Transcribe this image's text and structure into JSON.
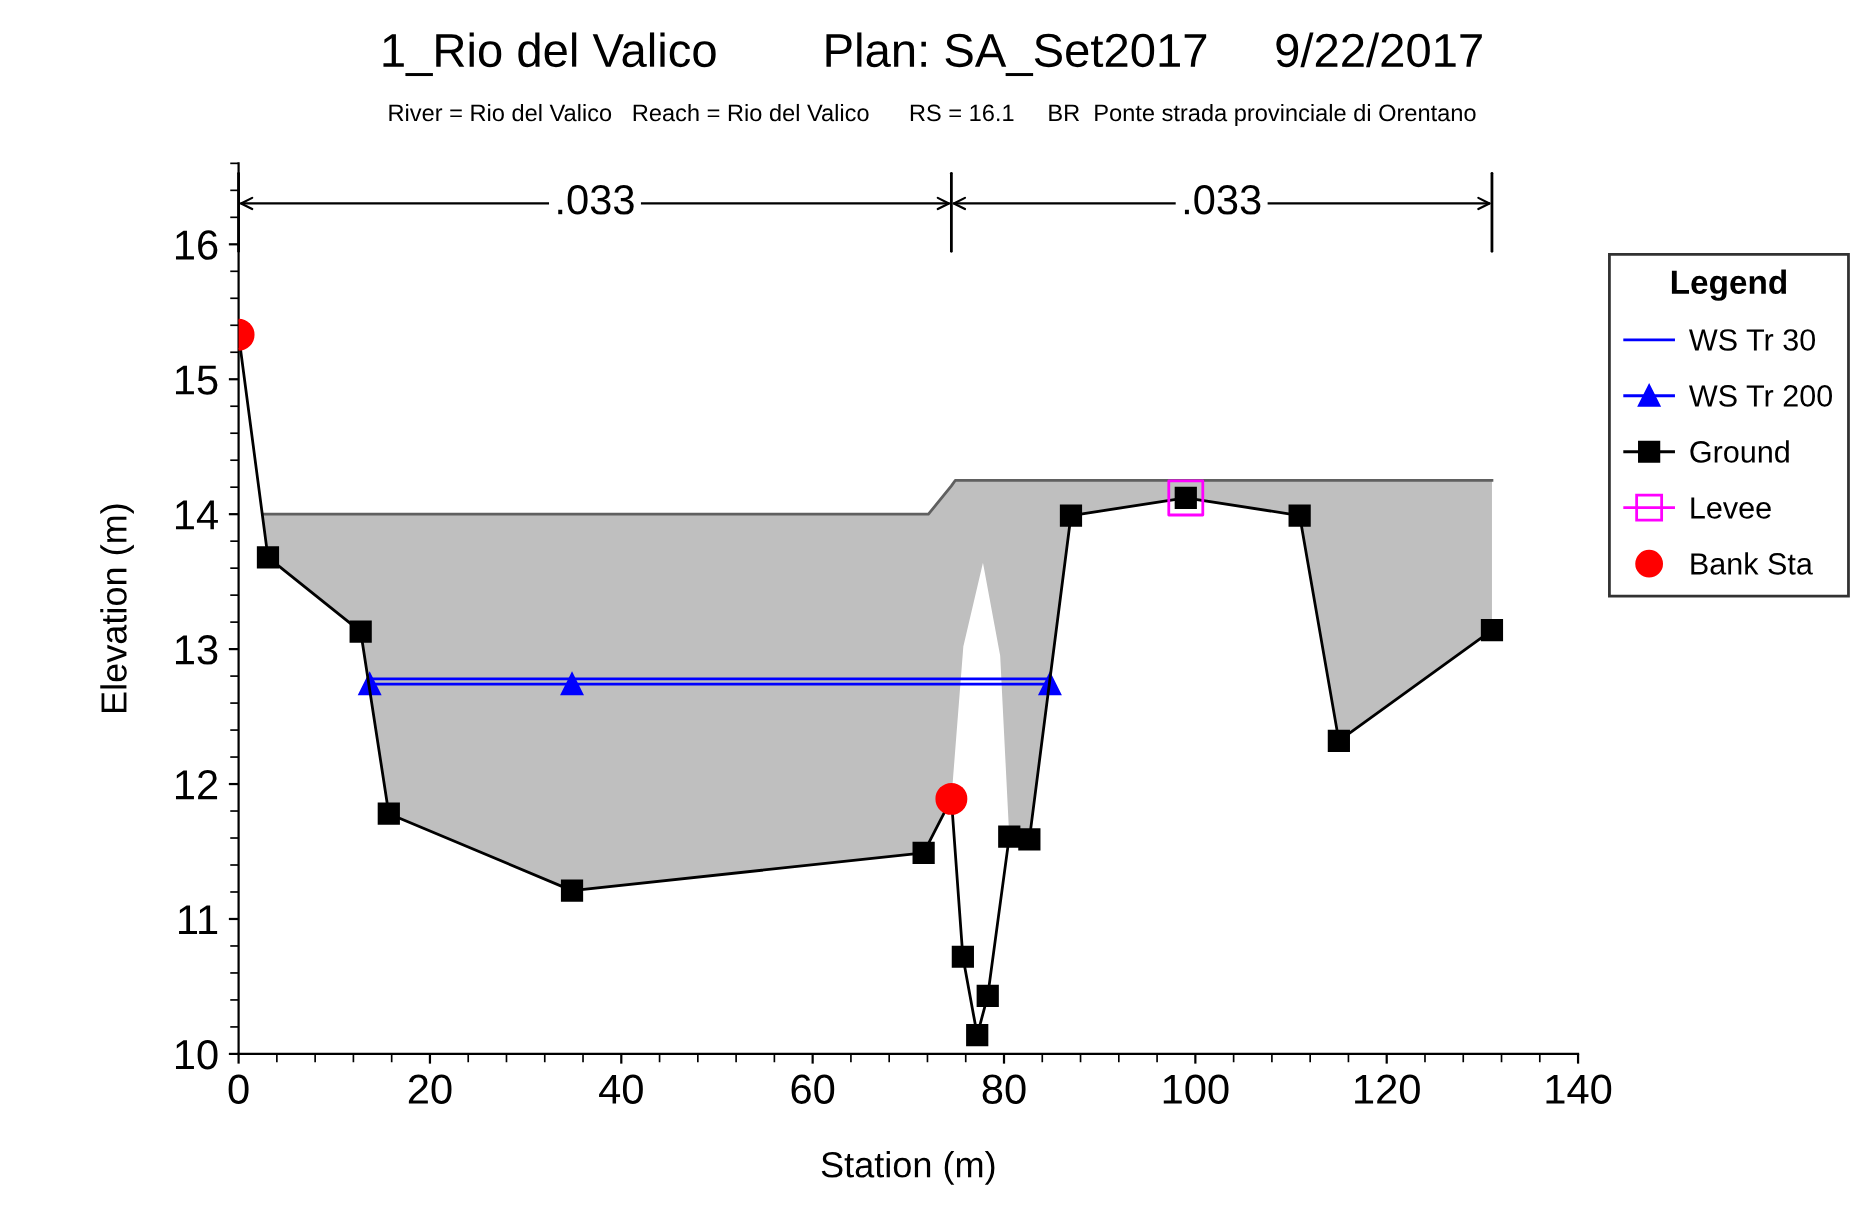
{
  "chart_data": {
    "type": "line",
    "title": "1_Rio del Valico        Plan: SA_Set2017     9/22/2017",
    "subtitle": "River = Rio del Valico   Reach = Rio del Valico      RS = 16.1     BR  Ponte strada provinciale di Orentano",
    "xlabel": "Station (m)",
    "ylabel": "Elevation (m)",
    "legend_title": "Legend",
    "series": [
      {
        "type": "line",
        "color": "#606060",
        "marker": "none",
        "x": [
          2.5,
          3.07,
          12.76,
          15.7,
          34.85,
          71.6,
          72.1,
          74.5,
          74.9,
          75.75,
          77.8,
          79.6,
          80.55,
          82.65,
          87.0,
          99.0,
          110.9,
          115.0,
          131.0
        ],
        "values": [
          14.0,
          14.0,
          14.0,
          14.0,
          14.0,
          14.0,
          14.0,
          14.21,
          14.25,
          14.25,
          14.25,
          14.25,
          14.25,
          14.25,
          14.25,
          14.25,
          14.25,
          14.25,
          14.25
        ],
        "lower": [
          14.0,
          13.68,
          13.13,
          11.78,
          11.21,
          11.49,
          11.56,
          11.89,
          12.25,
          13.02,
          13.64,
          12.95,
          11.61,
          11.59,
          13.99,
          14.12,
          13.99,
          12.32,
          13.14
        ],
        "upper": [
          14.0,
          14.0,
          14.0,
          14.0,
          14.0,
          14.0,
          14.0,
          14.21,
          14.25,
          14.25,
          14.25,
          14.25,
          14.25,
          14.25,
          14.25,
          14.25,
          14.25,
          14.25,
          14.25
        ]
      },
      {
        "name": "WS Tr 30",
        "color": "#0000ff",
        "marker": "none",
        "x": [
          13.7,
          84.8
        ],
        "values": [
          12.78,
          12.78
        ]
      },
      {
        "name": "WS Tr 200",
        "color": "#0000ff",
        "marker": "triangle",
        "x": [
          13.7,
          34.85,
          84.8
        ],
        "values": [
          12.74,
          12.74,
          12.74
        ]
      },
      {
        "name": "Ground",
        "color": "#000000",
        "marker": "square",
        "x": [
          0,
          3.07,
          12.76,
          15.7,
          34.85,
          71.6,
          74.5,
          75.7,
          77.2,
          78.3,
          80.55,
          82.65,
          87.0,
          99.0,
          110.9,
          115.0,
          131.0
        ],
        "values": [
          15.33,
          13.68,
          13.13,
          11.78,
          11.21,
          11.49,
          11.89,
          10.72,
          10.14,
          10.43,
          11.61,
          11.59,
          13.99,
          14.12,
          13.99,
          12.32,
          13.14
        ]
      },
      {
        "type": "scatter",
        "name": "Levee",
        "color": "#ff00ff",
        "marker": "square",
        "x": [
          99.0
        ],
        "values": [
          14.12
        ]
      },
      {
        "type": "scatter",
        "name": "Bank Sta",
        "color": "#ff0000",
        "marker": "circle",
        "x": [
          0,
          74.5
        ],
        "values": [
          15.33,
          11.89
        ]
      }
    ],
    "annotations": [
      ".033",
      ".033"
    ],
    "xlim": [
      0,
      140
    ],
    "ylim": [
      10,
      16.6
    ],
    "xticks": [
      0,
      20,
      40,
      60,
      80,
      100,
      120,
      140
    ],
    "yticks": [
      10,
      11,
      12,
      13,
      14,
      15,
      16
    ],
    "grid": false,
    "legend": "right"
  }
}
